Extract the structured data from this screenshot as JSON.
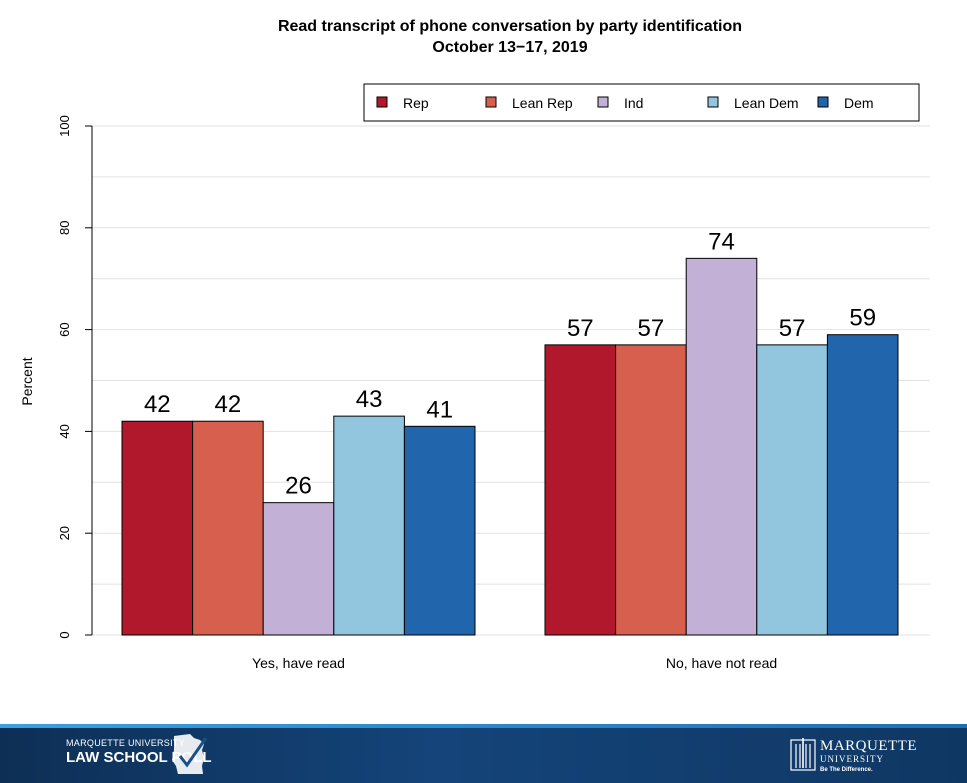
{
  "title_line1": "Read transcript of phone conversation by party identification",
  "title_line2": "October 13−17, 2019",
  "chart_data": {
    "type": "bar",
    "title": "Read transcript of phone conversation by party identification",
    "subtitle": "October 13−17, 2019",
    "ylabel": "Percent",
    "xlabel": "",
    "ylim": [
      0,
      100
    ],
    "yticks": [
      0,
      20,
      40,
      60,
      80,
      100
    ],
    "grid": true,
    "legend_position": "top-right",
    "categories": [
      "Yes, have read",
      "No, have not read"
    ],
    "series": [
      {
        "name": "Rep",
        "color": "#b2182b",
        "values": [
          42,
          57
        ]
      },
      {
        "name": "Lean Rep",
        "color": "#d6604d",
        "values": [
          42,
          57
        ]
      },
      {
        "name": "Ind",
        "color": "#c2b0d6",
        "values": [
          26,
          74
        ]
      },
      {
        "name": "Lean Dem",
        "color": "#92c5de",
        "values": [
          43,
          57
        ]
      },
      {
        "name": "Dem",
        "color": "#2166ac",
        "values": [
          41,
          59
        ]
      }
    ]
  },
  "footer": {
    "lsp_line1": "MARQUETTE UNIVERSITY",
    "lsp_line2": "LAW SCHOOL POLL",
    "mu_name": "MARQUETTE",
    "mu_university": "UNIVERSITY",
    "mu_tagline": "Be The Difference."
  }
}
